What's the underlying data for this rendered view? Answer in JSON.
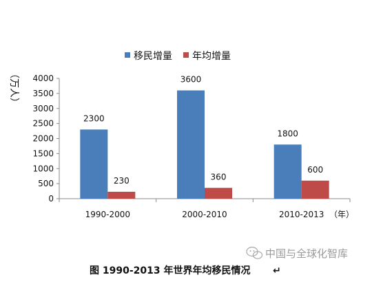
{
  "chart_data": {
    "type": "bar",
    "categories": [
      "1990-2000",
      "2000-2010",
      "2010-2013"
    ],
    "series": [
      {
        "name": "移民增量",
        "values": [
          2300,
          3600,
          1800
        ],
        "color": "#4a7ebb"
      },
      {
        "name": "年均增量",
        "values": [
          230,
          360,
          600
        ],
        "color": "#be4b48"
      }
    ],
    "ylabel": "（万人）",
    "xunit": "（年）",
    "ylim": [
      0,
      4000
    ],
    "yticks": [
      0,
      500,
      1000,
      1500,
      2000,
      2500,
      3000,
      3500,
      4000
    ],
    "grid": false,
    "legend_position": "top"
  },
  "caption": "图  1990-2013 年世界年均移民情况",
  "caption_mark": "↵",
  "watermark": {
    "text": "中国与全球化智库",
    "icon": "wechat-icon"
  }
}
